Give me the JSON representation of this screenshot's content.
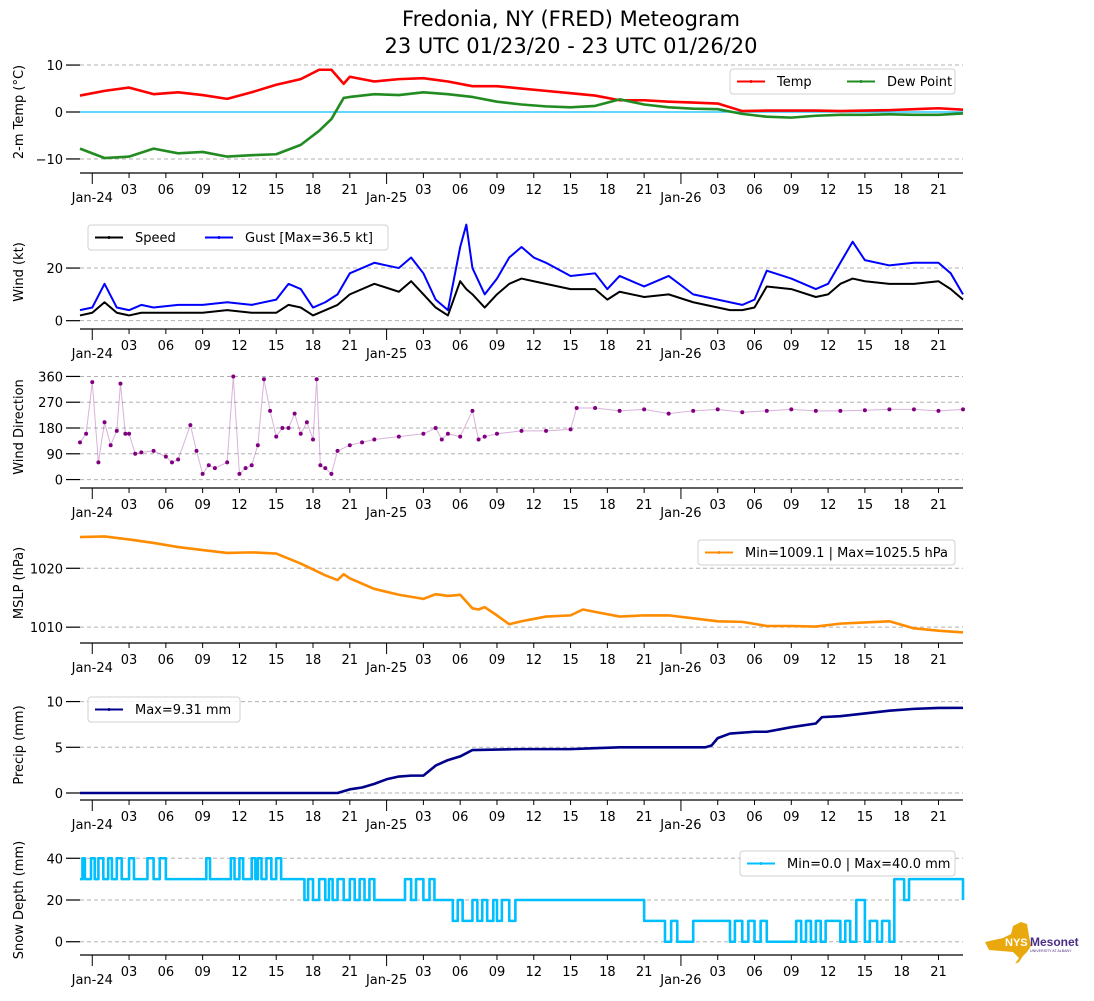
{
  "title": {
    "line1": "Fredonia, NY (FRED) Meteogram",
    "line2": "23 UTC 01/23/20 - 23 UTC 01/26/20"
  },
  "logo": {
    "text_main": "NYS",
    "text_brand": "Mesonet",
    "text_sub": "UNIVERSITY AT ALBANY",
    "icon": "new-york-state-map-icon",
    "colors": {
      "state": "#e9a90e",
      "brand": "#4b2e83"
    }
  },
  "chart_data": [
    {
      "type": "line",
      "id": "temp",
      "ylabel": "2-m Temp (°C)",
      "ylim": [
        -11.5,
        11.5
      ],
      "yticks": [
        -10,
        0,
        10
      ],
      "ytick_labels": [
        "−10",
        "0",
        "10"
      ],
      "grid": true,
      "zero_line": {
        "value": 0,
        "color": "#00bfff"
      },
      "legend": {
        "placement": "top-right",
        "columns": 2
      },
      "x_hours": [
        0,
        2,
        4,
        6,
        8,
        10,
        12,
        14,
        16,
        18,
        19.5,
        20.5,
        21.5,
        22,
        24,
        26,
        28,
        30,
        32,
        34,
        36,
        38,
        40,
        42,
        44,
        46,
        48,
        50,
        52,
        54,
        56,
        58,
        60,
        62,
        64,
        66,
        68,
        70,
        72
      ],
      "series": [
        {
          "name": "Temp",
          "color": "#ff0000",
          "values": [
            3.5,
            4.5,
            5.2,
            3.8,
            4.2,
            3.6,
            2.8,
            4.2,
            5.8,
            7.0,
            9.0,
            9.0,
            6.0,
            7.5,
            6.5,
            7.0,
            7.2,
            6.5,
            5.5,
            5.5,
            5.0,
            4.5,
            4.0,
            3.5,
            2.5,
            2.5,
            2.2,
            2.0,
            1.8,
            0.2,
            0.3,
            0.3,
            0.3,
            0.2,
            0.3,
            0.4,
            0.6,
            0.8,
            0.5
          ]
        },
        {
          "name": "Dew Point",
          "color": "#228b22",
          "values": [
            -7.8,
            -9.8,
            -9.5,
            -7.8,
            -8.8,
            -8.5,
            -9.5,
            -9.2,
            -9.0,
            -7.0,
            -4.0,
            -1.5,
            3.0,
            3.2,
            3.8,
            3.6,
            4.2,
            3.8,
            3.2,
            2.2,
            1.6,
            1.2,
            1.0,
            1.3,
            2.7,
            1.6,
            1.0,
            0.7,
            0.6,
            -0.4,
            -1.0,
            -1.2,
            -0.8,
            -0.6,
            -0.6,
            -0.5,
            -0.6,
            -0.6,
            -0.3
          ]
        }
      ]
    },
    {
      "type": "line",
      "id": "wind",
      "ylabel": "Wind (kt)",
      "ylim": [
        -0.5,
        37.5
      ],
      "yticks": [
        0,
        20
      ],
      "ytick_labels": [
        "0",
        "20"
      ],
      "grid": true,
      "legend": {
        "placement": "top-left",
        "columns": 2
      },
      "x_hours": [
        0,
        1,
        2,
        3,
        4,
        5,
        6,
        8,
        10,
        12,
        14,
        16,
        17,
        18,
        19,
        20,
        21,
        22,
        24,
        26,
        27,
        28,
        29,
        30,
        31,
        31.5,
        32,
        33,
        34,
        35,
        36,
        37,
        38,
        40,
        42,
        43,
        44,
        46,
        48,
        50,
        52,
        53,
        54,
        55,
        56,
        58,
        60,
        61,
        62,
        63,
        64,
        66,
        68,
        70,
        71,
        72
      ],
      "series": [
        {
          "name": "Speed",
          "color": "#000000",
          "values": [
            2,
            3,
            7,
            3,
            2,
            3,
            3,
            3,
            3,
            4,
            3,
            3,
            6,
            5,
            2,
            4,
            6,
            10,
            14,
            11,
            15,
            10,
            5,
            2,
            15,
            12,
            10,
            5,
            10,
            14,
            16,
            15,
            14,
            12,
            12,
            8,
            11,
            9,
            10,
            7,
            5,
            4,
            4,
            5,
            13,
            12,
            9,
            10,
            14,
            16,
            15,
            14,
            14,
            15,
            12,
            8
          ]
        },
        {
          "name": "Gust [Max=36.5 kt]",
          "color": "#0000ff",
          "values": [
            4,
            5,
            14,
            5,
            4,
            6,
            5,
            6,
            6,
            7,
            6,
            8,
            14,
            12,
            5,
            7,
            10,
            18,
            22,
            20,
            24,
            18,
            8,
            4,
            28,
            36.5,
            20,
            10,
            16,
            24,
            28,
            24,
            22,
            17,
            18,
            12,
            17,
            13,
            17,
            10,
            8,
            7,
            6,
            8,
            19,
            16,
            12,
            14,
            22,
            30,
            23,
            21,
            22,
            22,
            18,
            10
          ]
        }
      ]
    },
    {
      "type": "scatter",
      "id": "wind-direction",
      "ylabel": "Wind Direction",
      "ylim": [
        -5,
        372
      ],
      "yticks": [
        0,
        90,
        180,
        270,
        360
      ],
      "ytick_labels": [
        "0",
        "90",
        "180",
        "270",
        "360"
      ],
      "grid": true,
      "legend": null,
      "x_hours": [
        0,
        0.5,
        1,
        1.5,
        2,
        2.5,
        3,
        3.3,
        3.7,
        4,
        4.5,
        5,
        6,
        7,
        7.5,
        8,
        9,
        9.5,
        10,
        10.5,
        11,
        12,
        12.5,
        13,
        13.5,
        14,
        14.5,
        15,
        15.5,
        16,
        16.5,
        17,
        17.5,
        18,
        18.5,
        19,
        19.3,
        19.6,
        20,
        20.5,
        21,
        22,
        23,
        24,
        26,
        28,
        29,
        29.5,
        30,
        31,
        32,
        32.5,
        33,
        34,
        36,
        38,
        40,
        40.5,
        42,
        44,
        46,
        48,
        50,
        52,
        54,
        56,
        58,
        60,
        62,
        64,
        66,
        68,
        70,
        72
      ],
      "series": [
        {
          "name": "Wind Direction",
          "color": "#800080",
          "values": [
            130,
            160,
            340,
            60,
            200,
            120,
            170,
            335,
            160,
            160,
            90,
            95,
            100,
            80,
            60,
            70,
            190,
            100,
            20,
            50,
            40,
            60,
            360,
            20,
            40,
            50,
            120,
            350,
            240,
            150,
            180,
            180,
            230,
            160,
            200,
            140,
            350,
            50,
            40,
            20,
            100,
            120,
            130,
            140,
            150,
            160,
            180,
            140,
            160,
            150,
            240,
            140,
            150,
            160,
            170,
            170,
            175,
            250,
            250,
            240,
            245,
            230,
            240,
            245,
            235,
            240,
            245,
            240,
            240,
            242,
            245,
            245,
            240,
            245
          ]
        }
      ]
    },
    {
      "type": "line",
      "id": "mslp",
      "ylabel": "MSLP (hPa)",
      "ylim": [
        1008.5,
        1026.5
      ],
      "yticks": [
        1010,
        1020
      ],
      "ytick_labels": [
        "1010",
        "1020"
      ],
      "grid": true,
      "legend": {
        "placement": "top-right",
        "columns": 1
      },
      "x_hours": [
        0,
        2,
        4,
        6,
        8,
        10,
        12,
        14,
        16,
        18,
        20,
        21,
        21.5,
        22,
        24,
        26,
        28,
        29,
        30,
        31,
        32,
        32.5,
        33,
        34,
        35,
        36,
        37,
        38,
        40,
        41,
        42,
        44,
        46,
        48,
        50,
        52,
        54,
        56,
        58,
        60,
        62,
        64,
        66,
        68,
        70,
        72
      ],
      "series": [
        {
          "name": "Min=1009.1 | Max=1025.5 hPa",
          "color": "#ff8c00",
          "values": [
            1025.3,
            1025.4,
            1024.9,
            1024.3,
            1023.6,
            1023.1,
            1022.6,
            1022.7,
            1022.5,
            1020.8,
            1018.8,
            1018.0,
            1019.0,
            1018.3,
            1016.5,
            1015.5,
            1014.8,
            1015.6,
            1015.3,
            1015.5,
            1013.2,
            1013.0,
            1013.4,
            1012.0,
            1010.5,
            1011.0,
            1011.4,
            1011.8,
            1012.0,
            1013.0,
            1012.6,
            1011.8,
            1012.0,
            1012.0,
            1011.5,
            1011.0,
            1010.9,
            1010.2,
            1010.2,
            1010.1,
            1010.6,
            1010.8,
            1011.0,
            1009.8,
            1009.4,
            1009.1
          ]
        }
      ]
    },
    {
      "type": "line",
      "id": "precip",
      "ylabel": "Precip (mm)",
      "ylim": [
        0,
        10.5
      ],
      "yticks": [
        0,
        5,
        10
      ],
      "ytick_labels": [
        "0",
        "5",
        "10"
      ],
      "grid": true,
      "legend": {
        "placement": "top-left",
        "columns": 1
      },
      "x_hours": [
        0,
        21,
        22,
        23,
        24,
        25,
        26,
        27,
        28,
        29,
        30,
        31,
        32,
        36,
        40,
        42,
        44,
        48,
        51,
        51.5,
        52,
        53,
        55,
        56,
        58,
        60,
        60.5,
        62,
        64,
        66,
        68,
        70,
        72
      ],
      "series": [
        {
          "name": "Max=9.31 mm",
          "color": "#00008b",
          "values": [
            0,
            0,
            0.4,
            0.6,
            1.0,
            1.5,
            1.8,
            1.9,
            1.9,
            3.0,
            3.6,
            4.0,
            4.7,
            4.8,
            4.8,
            4.9,
            5.0,
            5.0,
            5.0,
            5.2,
            6.0,
            6.5,
            6.7,
            6.7,
            7.2,
            7.6,
            8.3,
            8.4,
            8.7,
            9.0,
            9.2,
            9.3,
            9.31
          ]
        }
      ]
    },
    {
      "type": "line",
      "id": "snow-depth",
      "ylabel": "Snow Depth (mm)",
      "ylim": [
        -3,
        43
      ],
      "yticks": [
        0,
        20,
        40
      ],
      "ytick_labels": [
        "0",
        "20",
        "40"
      ],
      "grid": true,
      "legend": {
        "placement": "top-right",
        "columns": 1
      },
      "x_hours": [
        0,
        0.2,
        0.4,
        0.9,
        1.2,
        1.5,
        1.9,
        2.3,
        2.6,
        3.0,
        3.4,
        4.0,
        4.4,
        5.0,
        5.5,
        6.0,
        6.5,
        7.0,
        10.0,
        10.3,
        10.6,
        12.0,
        12.3,
        12.6,
        13.0,
        13.3,
        14.0,
        14.3,
        14.5,
        14.8,
        15.2,
        15.6,
        16.0,
        16.4,
        18.0,
        18.3,
        18.6,
        19.0,
        19.5,
        20.0,
        20.3,
        20.6,
        21.0,
        21.5,
        22.0,
        22.4,
        22.8,
        23.2,
        23.6,
        24.0,
        25.0,
        26.0,
        26.5,
        27.0,
        27.4,
        28.0,
        28.5,
        28.9,
        29.4,
        30.0,
        30.4,
        30.8,
        31.2,
        32.0,
        32.4,
        32.8,
        33.2,
        33.7,
        34.0,
        34.4,
        35.0,
        35.5,
        46.0,
        46.3,
        46.8,
        47.2,
        47.7,
        48.2,
        48.7,
        50.0,
        53.0,
        53.4,
        54.0,
        54.5,
        55.0,
        55.5,
        56.0,
        58.0,
        58.4,
        58.8,
        59.2,
        59.6,
        60.0,
        60.4,
        60.8,
        62.0,
        62.4,
        62.8,
        63.3,
        64.0,
        64.4,
        65.0,
        65.4,
        66.0,
        66.4,
        67.2,
        67.6,
        72.0
      ],
      "series": [
        {
          "name": "Min=0.0 | Max=40.0 mm",
          "color": "#00bfff",
          "values": [
            30,
            40,
            30,
            40,
            30,
            40,
            30,
            40,
            30,
            40,
            30,
            40,
            30,
            30,
            40,
            30,
            40,
            30,
            30,
            40,
            30,
            30,
            40,
            30,
            40,
            30,
            40,
            30,
            40,
            30,
            40,
            30,
            40,
            30,
            30,
            20,
            30,
            20,
            30,
            20,
            30,
            20,
            30,
            20,
            30,
            20,
            30,
            20,
            30,
            20,
            20,
            20,
            30,
            20,
            30,
            20,
            30,
            20,
            20,
            20,
            10,
            20,
            10,
            20,
            10,
            20,
            10,
            20,
            10,
            20,
            10,
            20,
            10,
            10,
            10,
            10,
            0,
            10,
            0,
            10,
            0,
            10,
            0,
            10,
            0,
            10,
            0,
            0,
            10,
            0,
            10,
            0,
            10,
            0,
            10,
            0,
            10,
            0,
            20,
            0,
            10,
            0,
            10,
            0,
            30,
            20,
            30,
            20,
            20
          ]
        }
      ]
    }
  ],
  "x_axis": {
    "start": "23 UTC 01/23/20",
    "end": "23 UTC 01/26/20",
    "hour_ticks": [
      {
        "h": 4,
        "label": "03"
      },
      {
        "h": 7,
        "label": "06"
      },
      {
        "h": 10,
        "label": "09"
      },
      {
        "h": 13,
        "label": "12"
      },
      {
        "h": 16,
        "label": "15"
      },
      {
        "h": 19,
        "label": "18"
      },
      {
        "h": 22,
        "label": "21"
      },
      {
        "h": 28,
        "label": "03"
      },
      {
        "h": 31,
        "label": "06"
      },
      {
        "h": 34,
        "label": "09"
      },
      {
        "h": 37,
        "label": "12"
      },
      {
        "h": 40,
        "label": "15"
      },
      {
        "h": 43,
        "label": "18"
      },
      {
        "h": 46,
        "label": "21"
      },
      {
        "h": 52,
        "label": "03"
      },
      {
        "h": 55,
        "label": "06"
      },
      {
        "h": 58,
        "label": "09"
      },
      {
        "h": 61,
        "label": "12"
      },
      {
        "h": 64,
        "label": "15"
      },
      {
        "h": 67,
        "label": "18"
      },
      {
        "h": 70,
        "label": "21"
      }
    ],
    "day_ticks": [
      {
        "h": 1,
        "label": "Jan-24"
      },
      {
        "h": 25,
        "label": "Jan-25"
      },
      {
        "h": 49,
        "label": "Jan-26"
      }
    ]
  }
}
